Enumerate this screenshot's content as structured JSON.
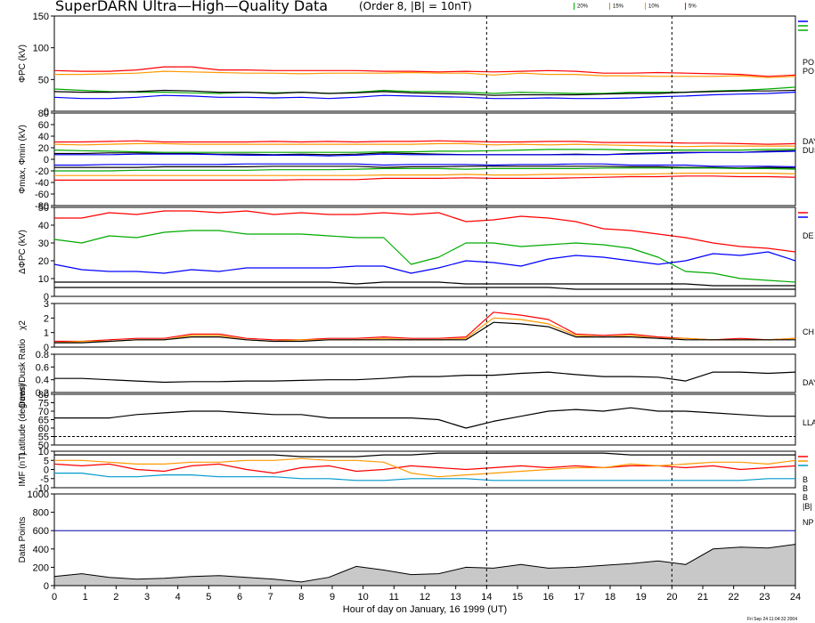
{
  "title": "SuperDARN Ultra—High—Quality Data",
  "subtitle": "(Order 8, |B| = 10nT)",
  "legend": [
    {
      "label": "20%",
      "color": "#00aa00"
    },
    {
      "label": "15%",
      "color": "#cc9900"
    },
    {
      "label": "10%",
      "color": "#ff9900"
    },
    {
      "label": "5%",
      "color": "#ff0000"
    }
  ],
  "timestamp": "Fri Sep 24 11:04:32 2004",
  "xlabel": "Hour of day on January, 16 1999 (UT)",
  "chart_data": [
    {
      "type": "line",
      "panel": "phi_pc",
      "ylabel": "ΦPC (kV)",
      "ylim": [
        0,
        150
      ],
      "yticks": [
        0,
        50,
        100,
        150
      ],
      "right_label": "PO\nPO",
      "right_mark_colors": [
        "#0000ff",
        "#00aa00",
        "#00aa00"
      ],
      "series": [
        {
          "color": "#ff0000",
          "values": [
            64,
            63,
            63,
            65,
            70,
            70,
            65,
            65,
            64,
            64,
            64,
            64,
            63,
            63,
            62,
            63,
            62,
            63,
            64,
            63,
            60,
            60,
            61,
            60,
            59,
            58,
            55,
            57
          ]
        },
        {
          "color": "#ff9900",
          "values": [
            58,
            58,
            59,
            60,
            63,
            62,
            61,
            60,
            60,
            59,
            60,
            60,
            60,
            61,
            60,
            60,
            57,
            60,
            58,
            58,
            56,
            56,
            55,
            55,
            55,
            56,
            53,
            55
          ]
        },
        {
          "color": "#00aa00",
          "values": [
            35,
            33,
            31,
            30,
            30,
            29,
            28,
            30,
            29,
            30,
            28,
            30,
            33,
            31,
            31,
            30,
            28,
            30,
            29,
            28,
            28,
            30,
            30,
            30,
            32,
            33,
            35,
            38
          ]
        },
        {
          "color": "#000000",
          "values": [
            31,
            30,
            30,
            31,
            33,
            32,
            30,
            30,
            28,
            30,
            28,
            29,
            31,
            29,
            28,
            27,
            25,
            26,
            26,
            26,
            27,
            28,
            28,
            30,
            31,
            32,
            32,
            33
          ]
        },
        {
          "color": "#0000ff",
          "values": [
            22,
            20,
            20,
            22,
            25,
            24,
            22,
            22,
            21,
            22,
            20,
            22,
            25,
            24,
            23,
            22,
            20,
            20,
            21,
            20,
            20,
            21,
            23,
            24,
            26,
            27,
            28,
            30
          ]
        }
      ]
    },
    {
      "type": "line",
      "panel": "phi_max_min",
      "ylabel": "Φmax, Φmin (kV)",
      "ylim": [
        -80,
        80
      ],
      "yticks": [
        -80,
        -60,
        -40,
        -20,
        0,
        20,
        40,
        60,
        80
      ],
      "right_label": "DAY\nDUS",
      "series": [
        {
          "color": "#ff0000",
          "values": [
            30,
            30,
            31,
            32,
            30,
            30,
            30,
            30,
            31,
            30,
            31,
            30,
            31,
            31,
            32,
            31,
            30,
            30,
            31,
            31,
            29,
            29,
            29,
            28,
            28,
            27,
            26,
            27
          ]
        },
        {
          "color": "#ff9900",
          "values": [
            26,
            25,
            26,
            27,
            27,
            26,
            26,
            26,
            26,
            26,
            26,
            26,
            26,
            26,
            27,
            27,
            25,
            26,
            25,
            26,
            25,
            24,
            23,
            22,
            23,
            23,
            23,
            23
          ]
        },
        {
          "color": "#00aa00",
          "values": [
            16,
            15,
            14,
            13,
            12,
            12,
            12,
            12,
            12,
            12,
            12,
            12,
            13,
            13,
            14,
            14,
            15,
            16,
            17,
            17,
            17,
            16,
            16,
            16,
            16,
            16,
            17,
            17
          ]
        },
        {
          "color": "#000000",
          "values": [
            10,
            10,
            11,
            11,
            10,
            10,
            9,
            9,
            8,
            9,
            8,
            9,
            11,
            10,
            9,
            8,
            8,
            8,
            8,
            9,
            8,
            10,
            11,
            12,
            12,
            12,
            14,
            15
          ]
        },
        {
          "color": "#0000ff",
          "values": [
            8,
            8,
            8,
            9,
            9,
            9,
            8,
            7,
            7,
            7,
            6,
            7,
            9,
            8,
            8,
            8,
            8,
            8,
            8,
            8,
            8,
            9,
            10,
            11,
            12,
            12,
            13,
            14
          ]
        },
        {
          "color": "#0000ff",
          "values": [
            -10,
            -10,
            -9,
            -9,
            -9,
            -9,
            -9,
            -8,
            -8,
            -8,
            -8,
            -8,
            -10,
            -9,
            -9,
            -9,
            -10,
            -9,
            -9,
            -8,
            -8,
            -10,
            -10,
            -10,
            -12,
            -12,
            -12,
            -13
          ]
        },
        {
          "color": "#000000",
          "values": [
            -14,
            -14,
            -14,
            -14,
            -13,
            -13,
            -13,
            -13,
            -12,
            -12,
            -12,
            -12,
            -14,
            -13,
            -13,
            -12,
            -12,
            -12,
            -12,
            -12,
            -12,
            -13,
            -13,
            -14,
            -14,
            -15,
            -14,
            -15
          ]
        },
        {
          "color": "#00aa00",
          "values": [
            -20,
            -20,
            -20,
            -19,
            -19,
            -19,
            -19,
            -19,
            -18,
            -18,
            -18,
            -17,
            -16,
            -16,
            -16,
            -17,
            -16,
            -16,
            -16,
            -16,
            -15,
            -15,
            -15,
            -15,
            -15,
            -16,
            -16,
            -17
          ]
        },
        {
          "color": "#ff9900",
          "values": [
            -28,
            -28,
            -28,
            -28,
            -28,
            -28,
            -28,
            -28,
            -28,
            -28,
            -28,
            -28,
            -27,
            -27,
            -27,
            -26,
            -27,
            -27,
            -26,
            -26,
            -26,
            -26,
            -25,
            -24,
            -24,
            -24,
            -24,
            -25
          ]
        },
        {
          "color": "#ff0000",
          "values": [
            -36,
            -36,
            -36,
            -36,
            -36,
            -36,
            -36,
            -36,
            -36,
            -35,
            -35,
            -35,
            -33,
            -33,
            -33,
            -32,
            -33,
            -33,
            -33,
            -32,
            -31,
            -30,
            -30,
            -29,
            -29,
            -30,
            -30,
            -31
          ]
        }
      ]
    },
    {
      "type": "line",
      "panel": "delta_phi",
      "ylabel": "ΔΦPC (kV)",
      "ylim": [
        0,
        50
      ],
      "yticks": [
        0,
        10,
        20,
        30,
        40,
        50
      ],
      "right_label": "DE",
      "right_mark_colors": [
        "#ff0000",
        "#0000ff"
      ],
      "series": [
        {
          "color": "#ff0000",
          "values": [
            44,
            44,
            47,
            46,
            48,
            48,
            47,
            48,
            46,
            47,
            46,
            46,
            47,
            46,
            47,
            42,
            43,
            45,
            44,
            42,
            38,
            37,
            35,
            33,
            30,
            28,
            27,
            25
          ]
        },
        {
          "color": "#00aa00",
          "values": [
            32,
            30,
            34,
            33,
            36,
            37,
            37,
            35,
            35,
            35,
            34,
            33,
            33,
            18,
            22,
            30,
            30,
            28,
            29,
            30,
            29,
            27,
            22,
            14,
            13,
            10,
            9,
            8
          ]
        },
        {
          "color": "#0000ff",
          "values": [
            18,
            15,
            14,
            14,
            13,
            15,
            14,
            16,
            16,
            16,
            16,
            17,
            17,
            13,
            16,
            20,
            19,
            17,
            21,
            23,
            22,
            20,
            18,
            20,
            24,
            23,
            25,
            20
          ]
        },
        {
          "color": "#000000",
          "values": [
            8,
            8,
            8,
            8,
            8,
            8,
            8,
            8,
            8,
            8,
            8,
            7,
            8,
            8,
            8,
            7,
            7,
            7,
            7,
            7,
            7,
            7,
            7,
            7,
            6,
            6,
            6,
            6
          ]
        },
        {
          "color": "#000000",
          "values": [
            5,
            5,
            5,
            5,
            5,
            5,
            5,
            5,
            5,
            5,
            5,
            5,
            5,
            5,
            5,
            5,
            5,
            5,
            5,
            4,
            4,
            4,
            4,
            4,
            4,
            4,
            4,
            4
          ]
        }
      ]
    },
    {
      "type": "line",
      "panel": "chi2",
      "ylabel": "χ2",
      "ylim": [
        0,
        3
      ],
      "yticks": [
        0,
        1,
        2,
        3
      ],
      "right_label": "CH",
      "series": [
        {
          "color": "#ff0000",
          "values": [
            0.4,
            0.4,
            0.5,
            0.6,
            0.6,
            0.9,
            0.9,
            0.6,
            0.5,
            0.5,
            0.6,
            0.6,
            0.7,
            0.6,
            0.6,
            0.7,
            2.4,
            2.2,
            1.9,
            0.9,
            0.8,
            0.9,
            0.7,
            0.6,
            0.5,
            0.6,
            0.5,
            0.6
          ]
        },
        {
          "color": "#ff9900",
          "values": [
            0.3,
            0.4,
            0.4,
            0.5,
            0.5,
            0.8,
            0.8,
            0.5,
            0.4,
            0.5,
            0.5,
            0.5,
            0.6,
            0.5,
            0.5,
            0.6,
            2.0,
            1.9,
            1.6,
            0.8,
            0.7,
            0.8,
            0.6,
            0.6,
            0.5,
            0.5,
            0.5,
            0.6
          ]
        },
        {
          "color": "#000000",
          "values": [
            0.3,
            0.3,
            0.4,
            0.5,
            0.5,
            0.7,
            0.7,
            0.5,
            0.4,
            0.4,
            0.5,
            0.5,
            0.5,
            0.5,
            0.5,
            0.5,
            1.7,
            1.6,
            1.4,
            0.7,
            0.7,
            0.7,
            0.6,
            0.5,
            0.5,
            0.5,
            0.5,
            0.5
          ]
        }
      ]
    },
    {
      "type": "line",
      "panel": "dawn_dusk_ratio",
      "ylabel": "Dawn/Dusk Ratio",
      "ylim": [
        0.2,
        0.8
      ],
      "yticks": [
        0.2,
        0.4,
        0.6,
        0.8
      ],
      "right_label": "DAY",
      "series": [
        {
          "color": "#000000",
          "values": [
            0.42,
            0.42,
            0.4,
            0.38,
            0.36,
            0.37,
            0.37,
            0.38,
            0.38,
            0.39,
            0.4,
            0.4,
            0.42,
            0.45,
            0.45,
            0.47,
            0.47,
            0.5,
            0.52,
            0.48,
            0.45,
            0.45,
            0.44,
            0.38,
            0.52,
            0.52,
            0.5,
            0.52
          ]
        }
      ]
    },
    {
      "type": "line",
      "panel": "latitude",
      "ylabel": "Latitude (degrees)",
      "ylim": [
        50,
        80
      ],
      "yticks": [
        50,
        55,
        60,
        65,
        70,
        75,
        80
      ],
      "right_label": "LLA",
      "reference": 55,
      "series": [
        {
          "color": "#000000",
          "values": [
            66,
            66,
            66,
            68,
            69,
            70,
            70,
            69,
            68,
            68,
            66,
            66,
            66,
            66,
            65,
            60,
            64,
            67,
            70,
            71,
            70,
            72,
            70,
            70,
            69,
            68,
            67,
            67
          ]
        }
      ]
    },
    {
      "type": "line",
      "panel": "imf",
      "ylabel": "IMF (nT)",
      "ylim": [
        -10,
        10
      ],
      "yticks": [
        -10,
        -5,
        0,
        5,
        10
      ],
      "right_label": "B\nB\nB\n|B|",
      "right_mark_colors": [
        "#ff0000",
        "#ff9900",
        "#0099cc"
      ],
      "series": [
        {
          "color": "#000000",
          "values": [
            8,
            8,
            8,
            8,
            8,
            8,
            8,
            8,
            8,
            7,
            7,
            7,
            8,
            8,
            9,
            9,
            9,
            9,
            9,
            9,
            9,
            8,
            8,
            8,
            8,
            8,
            8,
            8
          ]
        },
        {
          "color": "#ff0000",
          "values": [
            3,
            2,
            3,
            0,
            -1,
            2,
            3,
            0,
            -2,
            1,
            2,
            -1,
            0,
            2,
            1,
            0,
            1,
            2,
            1,
            2,
            1,
            2,
            2,
            1,
            2,
            0,
            1,
            2
          ]
        },
        {
          "color": "#ff9900",
          "values": [
            5,
            5,
            4,
            3,
            3,
            4,
            4,
            5,
            5,
            6,
            5,
            5,
            4,
            -2,
            -4,
            -3,
            -2,
            -1,
            0,
            1,
            1,
            3,
            2,
            3,
            4,
            4,
            3,
            5
          ]
        },
        {
          "color": "#0099cc",
          "values": [
            -2,
            -2,
            -4,
            -4,
            -3,
            -3,
            -4,
            -4,
            -4,
            -5,
            -5,
            -6,
            -6,
            -5,
            -5,
            -5,
            -6,
            -6,
            -6,
            -6,
            -6,
            -6,
            -6,
            -6,
            -6,
            -6,
            -5,
            -5
          ]
        }
      ]
    },
    {
      "type": "area",
      "panel": "data_points",
      "ylabel": "Data Points",
      "ylim": [
        0,
        1000
      ],
      "yticks": [
        0,
        200,
        400,
        600,
        800,
        1000
      ],
      "right_label": "NP",
      "reference": 600,
      "series": [
        {
          "color": "#000000",
          "fill": "#c8c8c8",
          "values": [
            100,
            130,
            90,
            70,
            80,
            100,
            110,
            90,
            70,
            40,
            90,
            210,
            170,
            120,
            130,
            200,
            190,
            230,
            190,
            200,
            220,
            240,
            270,
            230,
            400,
            420,
            410,
            450
          ]
        }
      ]
    }
  ],
  "x_axis": {
    "min": 0,
    "max": 24,
    "ticks": [
      "0",
      "1",
      "2",
      "3",
      "4",
      "5",
      "6",
      "7",
      "8",
      "9",
      "10",
      "11",
      "12",
      "13",
      "14",
      "15",
      "16",
      "17",
      "18",
      "19",
      "20",
      "21",
      "22",
      "23",
      "24"
    ]
  },
  "vlines": [
    14,
    20
  ]
}
